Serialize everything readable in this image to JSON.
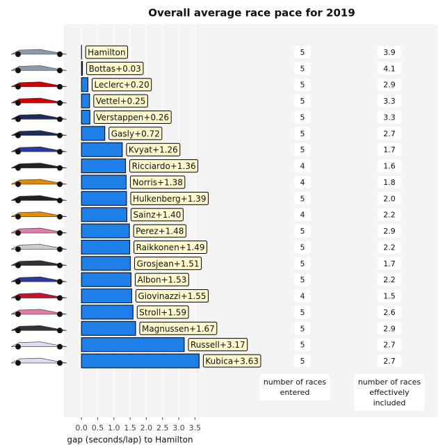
{
  "chart_data": {
    "type": "bar",
    "orientation": "horizontal",
    "title": "Overall average race pace for 2019",
    "x_label": "gap (seconds/lap) to Hamilton",
    "values": [
      0,
      0.03,
      0.2,
      0.25,
      0.26,
      0.72,
      1.26,
      1.36,
      1.38,
      1.39,
      1.4,
      1.48,
      1.49,
      1.51,
      1.53,
      1.55,
      1.59,
      1.67,
      3.17,
      3.63
    ],
    "value_labels": [
      "Hamilton",
      "Bottas+0.03",
      "Leclerc+0.20",
      "Vettel+0.25",
      "Verstappen+0.26",
      "Gasly+0.72",
      "Kvyat+1.26",
      "Ricciardo+1.36",
      "Norris+1.38",
      "Hulkenberg+1.39",
      "Sainz+1.40",
      "Perez+1.48",
      "Raikkonen+1.49",
      "Grosjean+1.51",
      "Albon+1.53",
      "Giovinazzi+1.55",
      "Stroll+1.59",
      "Magnussen+1.67",
      "Russell+3.17",
      "Kubica+3.63"
    ],
    "color": "#1f7fe8",
    "xlim": [
      -0.54,
      11.0
    ],
    "xticks": [
      {
        "value": 0,
        "label": "0.0"
      },
      0.5,
      {
        "value": 1,
        "label": "1.0"
      },
      1.5,
      {
        "value": 2,
        "label": "2.0"
      },
      2.5,
      {
        "value": 3,
        "label": "3.0"
      },
      3.5
    ],
    "grid": true,
    "columns": [
      {
        "header_lines": [
          "number of races",
          "entered"
        ],
        "values": [
          5,
          5,
          5,
          5,
          5,
          5,
          5,
          4,
          4,
          5,
          4,
          5,
          5,
          5,
          5,
          4,
          5,
          5,
          5,
          5
        ]
      },
      {
        "header_lines": [
          "number of races",
          "effectively",
          "included"
        ],
        "values": [
          3.9,
          4.1,
          2.9,
          3.3,
          3.3,
          2.7,
          1.7,
          1.6,
          1.8,
          2.0,
          2.2,
          2.9,
          2.2,
          1.7,
          2.2,
          1.5,
          2.6,
          2.9,
          2.7,
          2.7
        ],
        "value_labels": [
          "3.9",
          "4.1",
          "2.9",
          "3.3",
          "3.3",
          "2.7",
          "1.7",
          "1.6",
          "1.8",
          "2.0",
          "2.2",
          "2.9",
          "2.2",
          "1.7",
          "2.2",
          "1.5",
          "2.6",
          "2.9",
          "2.7",
          "2.7"
        ]
      }
    ]
  }
}
